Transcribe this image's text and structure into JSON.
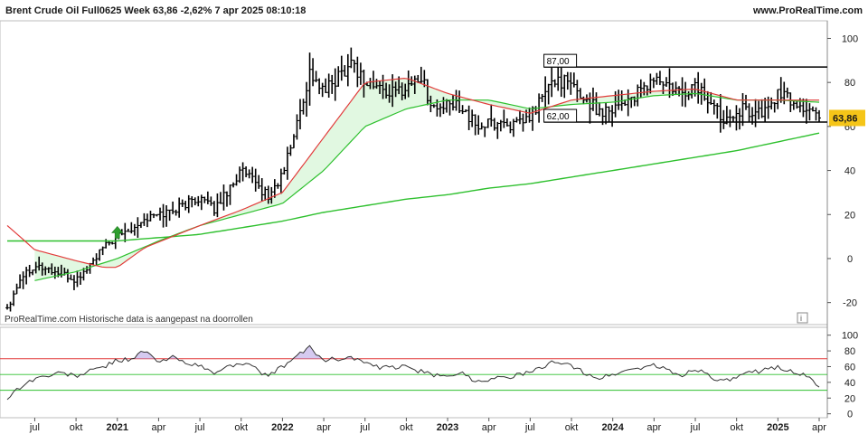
{
  "header": {
    "title": "Brent Crude Oil Full0625 Week 63,86 -2,62% 7 apr 2025 08:10:18",
    "source": "www.ProRealTime.com"
  },
  "footnote": "ProRealTime.com  Historische data is aangepast na doorrollen",
  "info_icon": "i",
  "price_label": "63,86",
  "levels": [
    {
      "value": 87,
      "label": "87,00"
    },
    {
      "value": 62,
      "label": "62,00"
    }
  ],
  "colors": {
    "candles": "#000000",
    "ma_red": "#e23b3b",
    "ma_green": "#2ec02e",
    "price_badge": "#f5c518",
    "rsi_line": "#333333",
    "rsi_upper": "#e23b3b",
    "rsi_lower": "#2ec02e",
    "buy_arrow": "#2e9e2e"
  },
  "chart_data": [
    {
      "type": "candlestick",
      "ylim": [
        -30,
        108
      ],
      "yticks": [
        "100",
        "80",
        "60",
        "40",
        "20",
        "0",
        "-20"
      ],
      "x_start": "2020-05",
      "x_end": "2025-04",
      "x_ticks": [
        {
          "label": "jul",
          "date": "2020-07",
          "bold": false
        },
        {
          "label": "okt",
          "date": "2020-10",
          "bold": false
        },
        {
          "label": "2021",
          "date": "2021-01",
          "bold": true
        },
        {
          "label": "apr",
          "date": "2021-04",
          "bold": false
        },
        {
          "label": "jul",
          "date": "2021-07",
          "bold": false
        },
        {
          "label": "okt",
          "date": "2021-10",
          "bold": false
        },
        {
          "label": "2022",
          "date": "2022-01",
          "bold": true
        },
        {
          "label": "apr",
          "date": "2022-04",
          "bold": false
        },
        {
          "label": "jul",
          "date": "2022-07",
          "bold": false
        },
        {
          "label": "okt",
          "date": "2022-10",
          "bold": false
        },
        {
          "label": "2023",
          "date": "2023-01",
          "bold": true
        },
        {
          "label": "apr",
          "date": "2023-04",
          "bold": false
        },
        {
          "label": "jul",
          "date": "2023-07",
          "bold": false
        },
        {
          "label": "okt",
          "date": "2023-10",
          "bold": false
        },
        {
          "label": "2024",
          "date": "2024-01",
          "bold": true
        },
        {
          "label": "apr",
          "date": "2024-04",
          "bold": false
        },
        {
          "label": "jul",
          "date": "2024-07",
          "bold": false
        },
        {
          "label": "okt",
          "date": "2024-10",
          "bold": false
        },
        {
          "label": "2025",
          "date": "2025-01",
          "bold": true
        },
        {
          "label": "apr",
          "date": "2025-04",
          "bold": false
        }
      ],
      "price_anchors": [
        [
          "2020-05",
          -22
        ],
        [
          "2020-06",
          -8
        ],
        [
          "2020-07",
          -3
        ],
        [
          "2020-08",
          -5
        ],
        [
          "2020-10",
          -10
        ],
        [
          "2020-11",
          -3
        ],
        [
          "2020-12",
          5
        ],
        [
          "2021-01",
          10
        ],
        [
          "2021-03",
          18
        ],
        [
          "2021-05",
          22
        ],
        [
          "2021-07",
          28
        ],
        [
          "2021-08",
          22
        ],
        [
          "2021-10",
          40
        ],
        [
          "2021-12",
          28
        ],
        [
          "2022-01",
          38
        ],
        [
          "2022-02",
          60
        ],
        [
          "2022-03",
          85
        ],
        [
          "2022-04",
          75
        ],
        [
          "2022-06",
          90
        ],
        [
          "2022-07",
          80
        ],
        [
          "2022-09",
          75
        ],
        [
          "2022-10",
          78
        ],
        [
          "2022-11",
          83
        ],
        [
          "2022-12",
          68
        ],
        [
          "2023-02",
          70
        ],
        [
          "2023-03",
          60
        ],
        [
          "2023-05",
          62
        ],
        [
          "2023-06",
          60
        ],
        [
          "2023-07",
          64
        ],
        [
          "2023-08",
          75
        ],
        [
          "2023-09",
          82
        ],
        [
          "2023-10",
          78
        ],
        [
          "2023-12",
          67
        ],
        [
          "2024-01",
          69
        ],
        [
          "2024-03",
          75
        ],
        [
          "2024-04",
          82
        ],
        [
          "2024-06",
          74
        ],
        [
          "2024-07",
          79
        ],
        [
          "2024-09",
          64
        ],
        [
          "2024-10",
          68
        ],
        [
          "2024-12",
          66
        ],
        [
          "2025-01",
          75
        ],
        [
          "2025-03",
          68
        ],
        [
          "2025-04",
          63.86
        ]
      ],
      "ma_red_anchors": [
        [
          "2020-05",
          15
        ],
        [
          "2020-07",
          4
        ],
        [
          "2020-10",
          -1
        ],
        [
          "2020-12",
          -4
        ],
        [
          "2021-01",
          -4
        ],
        [
          "2021-03",
          5
        ],
        [
          "2021-07",
          15
        ],
        [
          "2021-10",
          22
        ],
        [
          "2022-01",
          30
        ],
        [
          "2022-04",
          55
        ],
        [
          "2022-07",
          80
        ],
        [
          "2022-10",
          82
        ],
        [
          "2023-01",
          75
        ],
        [
          "2023-04",
          70
        ],
        [
          "2023-07",
          66
        ],
        [
          "2023-10",
          72
        ],
        [
          "2024-01",
          74
        ],
        [
          "2024-04",
          76
        ],
        [
          "2024-07",
          77
        ],
        [
          "2024-10",
          72
        ],
        [
          "2025-01",
          72
        ],
        [
          "2025-04",
          72
        ]
      ],
      "ma_green_anchors": [
        [
          "2020-07",
          -10
        ],
        [
          "2020-10",
          -6
        ],
        [
          "2021-01",
          0
        ],
        [
          "2021-04",
          8
        ],
        [
          "2021-07",
          15
        ],
        [
          "2021-10",
          20
        ],
        [
          "2022-01",
          25
        ],
        [
          "2022-04",
          40
        ],
        [
          "2022-07",
          60
        ],
        [
          "2022-10",
          68
        ],
        [
          "2023-01",
          72
        ],
        [
          "2023-04",
          72
        ],
        [
          "2023-07",
          68
        ],
        [
          "2023-10",
          70
        ],
        [
          "2024-01",
          71
        ],
        [
          "2024-04",
          74
        ],
        [
          "2024-07",
          75
        ],
        [
          "2024-10",
          72
        ],
        [
          "2025-01",
          72
        ],
        [
          "2025-04",
          71
        ]
      ],
      "ma_long_anchors": [
        [
          "2020-05",
          8
        ],
        [
          "2020-10",
          8
        ],
        [
          "2021-01",
          8
        ],
        [
          "2021-04",
          9.5
        ],
        [
          "2021-07",
          11
        ],
        [
          "2021-10",
          14
        ],
        [
          "2022-01",
          17
        ],
        [
          "2022-04",
          21
        ],
        [
          "2022-07",
          24
        ],
        [
          "2022-10",
          27
        ],
        [
          "2023-01",
          29
        ],
        [
          "2023-04",
          32
        ],
        [
          "2023-07",
          34
        ],
        [
          "2023-10",
          37
        ],
        [
          "2024-01",
          40
        ],
        [
          "2024-04",
          43
        ],
        [
          "2024-07",
          46
        ],
        [
          "2024-10",
          49
        ],
        [
          "2025-01",
          53
        ],
        [
          "2025-04",
          57
        ]
      ],
      "buy_signal_date": "2021-01",
      "buy_signal_value": 8
    },
    {
      "type": "line",
      "ylim": [
        -5,
        110
      ],
      "yticks": [
        "100",
        "80",
        "60",
        "40",
        "20",
        "0"
      ],
      "upper_band": 70,
      "lower_band": 30,
      "mid_line": 50,
      "rsi_anchors": [
        [
          "2020-05",
          20
        ],
        [
          "2020-06",
          35
        ],
        [
          "2020-07",
          45
        ],
        [
          "2020-09",
          52
        ],
        [
          "2020-10",
          48
        ],
        [
          "2020-12",
          60
        ],
        [
          "2021-01",
          68
        ],
        [
          "2021-02",
          70
        ],
        [
          "2021-03",
          80
        ],
        [
          "2021-04",
          65
        ],
        [
          "2021-05",
          72
        ],
        [
          "2021-07",
          60
        ],
        [
          "2021-08",
          52
        ],
        [
          "2021-10",
          66
        ],
        [
          "2021-12",
          48
        ],
        [
          "2022-01",
          60
        ],
        [
          "2022-03",
          85
        ],
        [
          "2022-04",
          68
        ],
        [
          "2022-06",
          72
        ],
        [
          "2022-08",
          58
        ],
        [
          "2022-10",
          60
        ],
        [
          "2022-12",
          48
        ],
        [
          "2023-02",
          52
        ],
        [
          "2023-03",
          42
        ],
        [
          "2023-05",
          46
        ],
        [
          "2023-07",
          52
        ],
        [
          "2023-09",
          68
        ],
        [
          "2023-11",
          52
        ],
        [
          "2023-12",
          45
        ],
        [
          "2024-02",
          55
        ],
        [
          "2024-04",
          62
        ],
        [
          "2024-06",
          48
        ],
        [
          "2024-07",
          58
        ],
        [
          "2024-09",
          40
        ],
        [
          "2024-11",
          52
        ],
        [
          "2025-01",
          60
        ],
        [
          "2025-03",
          48
        ],
        [
          "2025-04",
          36
        ]
      ]
    }
  ]
}
